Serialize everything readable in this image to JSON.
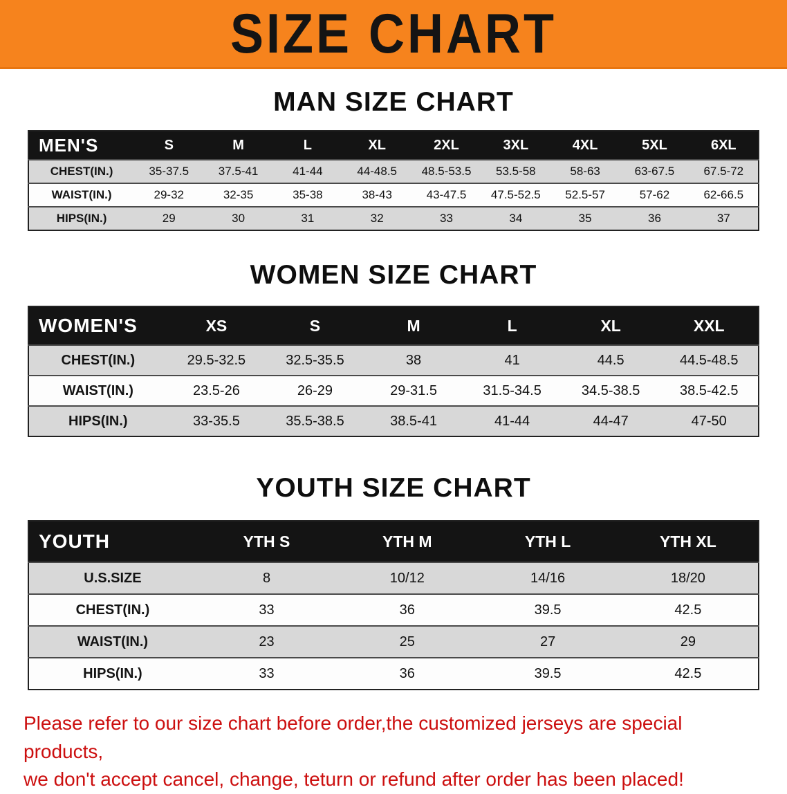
{
  "banner": {
    "title": "SIZE CHART"
  },
  "sections": [
    {
      "id": "men",
      "heading": "MAN SIZE CHART",
      "table": {
        "corner": "MEN'S",
        "sizes": [
          "S",
          "M",
          "L",
          "XL",
          "2XL",
          "3XL",
          "4XL",
          "5XL",
          "6XL"
        ],
        "rows": [
          {
            "label": "CHEST(IN.)",
            "values": [
              "35-37.5",
              "37.5-41",
              "41-44",
              "44-48.5",
              "48.5-53.5",
              "53.5-58",
              "58-63",
              "63-67.5",
              "67.5-72"
            ]
          },
          {
            "label": "WAIST(IN.)",
            "values": [
              "29-32",
              "32-35",
              "35-38",
              "38-43",
              "43-47.5",
              "47.5-52.5",
              "52.5-57",
              "57-62",
              "62-66.5"
            ]
          },
          {
            "label": "HIPS(IN.)",
            "values": [
              "29",
              "30",
              "31",
              "32",
              "33",
              "34",
              "35",
              "36",
              "37"
            ]
          }
        ]
      }
    },
    {
      "id": "women",
      "heading": "WOMEN SIZE CHART",
      "table": {
        "corner": "WOMEN'S",
        "sizes": [
          "XS",
          "S",
          "M",
          "L",
          "XL",
          "XXL"
        ],
        "rows": [
          {
            "label": "CHEST(IN.)",
            "values": [
              "29.5-32.5",
              "32.5-35.5",
              "38",
              "41",
              "44.5",
              "44.5-48.5"
            ]
          },
          {
            "label": "WAIST(IN.)",
            "values": [
              "23.5-26",
              "26-29",
              "29-31.5",
              "31.5-34.5",
              "34.5-38.5",
              "38.5-42.5"
            ]
          },
          {
            "label": "HIPS(IN.)",
            "values": [
              "33-35.5",
              "35.5-38.5",
              "38.5-41",
              "41-44",
              "44-47",
              "47-50"
            ]
          }
        ]
      }
    },
    {
      "id": "youth",
      "heading": "YOUTH SIZE CHART",
      "table": {
        "corner": "YOUTH",
        "sizes": [
          "YTH S",
          "YTH M",
          "YTH L",
          "YTH XL"
        ],
        "rows": [
          {
            "label": "U.S.SIZE",
            "values": [
              "8",
              "10/12",
              "14/16",
              "18/20"
            ]
          },
          {
            "label": "CHEST(IN.)",
            "values": [
              "33",
              "36",
              "39.5",
              "42.5"
            ]
          },
          {
            "label": "WAIST(IN.)",
            "values": [
              "23",
              "25",
              "27",
              "29"
            ]
          },
          {
            "label": "HIPS(IN.)",
            "values": [
              "33",
              "36",
              "39.5",
              "42.5"
            ]
          }
        ]
      }
    }
  ],
  "disclaimer": {
    "line1": "Please refer to our size chart before order,the customized jerseys are special products,",
    "line2": "we don't accept cancel, change, teturn or refund after order has been placed!"
  },
  "colors": {
    "banner_bg": "#f6831d",
    "table_header_bg": "#141414",
    "row_alt_bg": "#d8d8d8",
    "disclaimer_red": "#cc0f0f"
  }
}
